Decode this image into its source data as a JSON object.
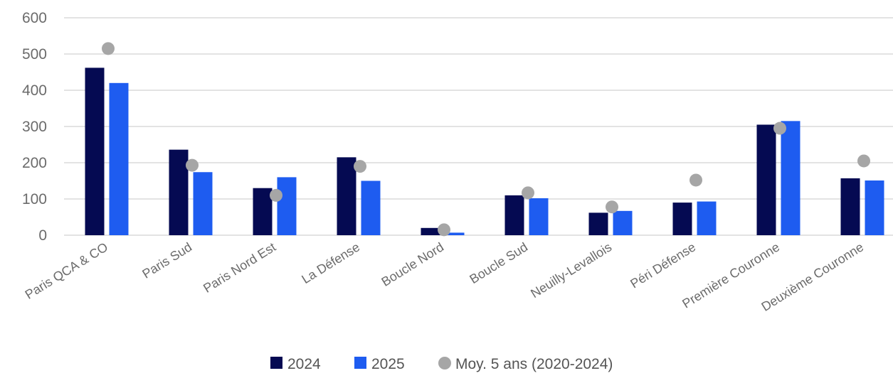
{
  "chart_data": {
    "type": "bar",
    "categories": [
      "Paris QCA & CO",
      "Paris Sud",
      "Paris Nord Est",
      "La Défense",
      "Boucle Nord",
      "Boucle Sud",
      "Neuilly-Levallois",
      "Péri Défense",
      "Première Couronne",
      "Deuxième Couronne"
    ],
    "series": [
      {
        "name": "2024",
        "kind": "bar",
        "color": "#050a52",
        "values": [
          462,
          236,
          130,
          215,
          20,
          110,
          62,
          90,
          305,
          157
        ]
      },
      {
        "name": "2025",
        "kind": "bar",
        "color": "#1e5cf0",
        "values": [
          420,
          174,
          160,
          150,
          7,
          102,
          67,
          93,
          315,
          151
        ]
      },
      {
        "name": "Moy. 5 ans (2020-2024)",
        "kind": "dot",
        "color": "#a6a6a6",
        "values": [
          515,
          193,
          110,
          190,
          15,
          117,
          78,
          152,
          295,
          205
        ]
      }
    ],
    "yticks": [
      "0",
      "100",
      "200",
      "300",
      "400",
      "500",
      "600"
    ],
    "ylim": [
      0,
      600
    ],
    "grid": true,
    "legend_position": "bottom"
  }
}
